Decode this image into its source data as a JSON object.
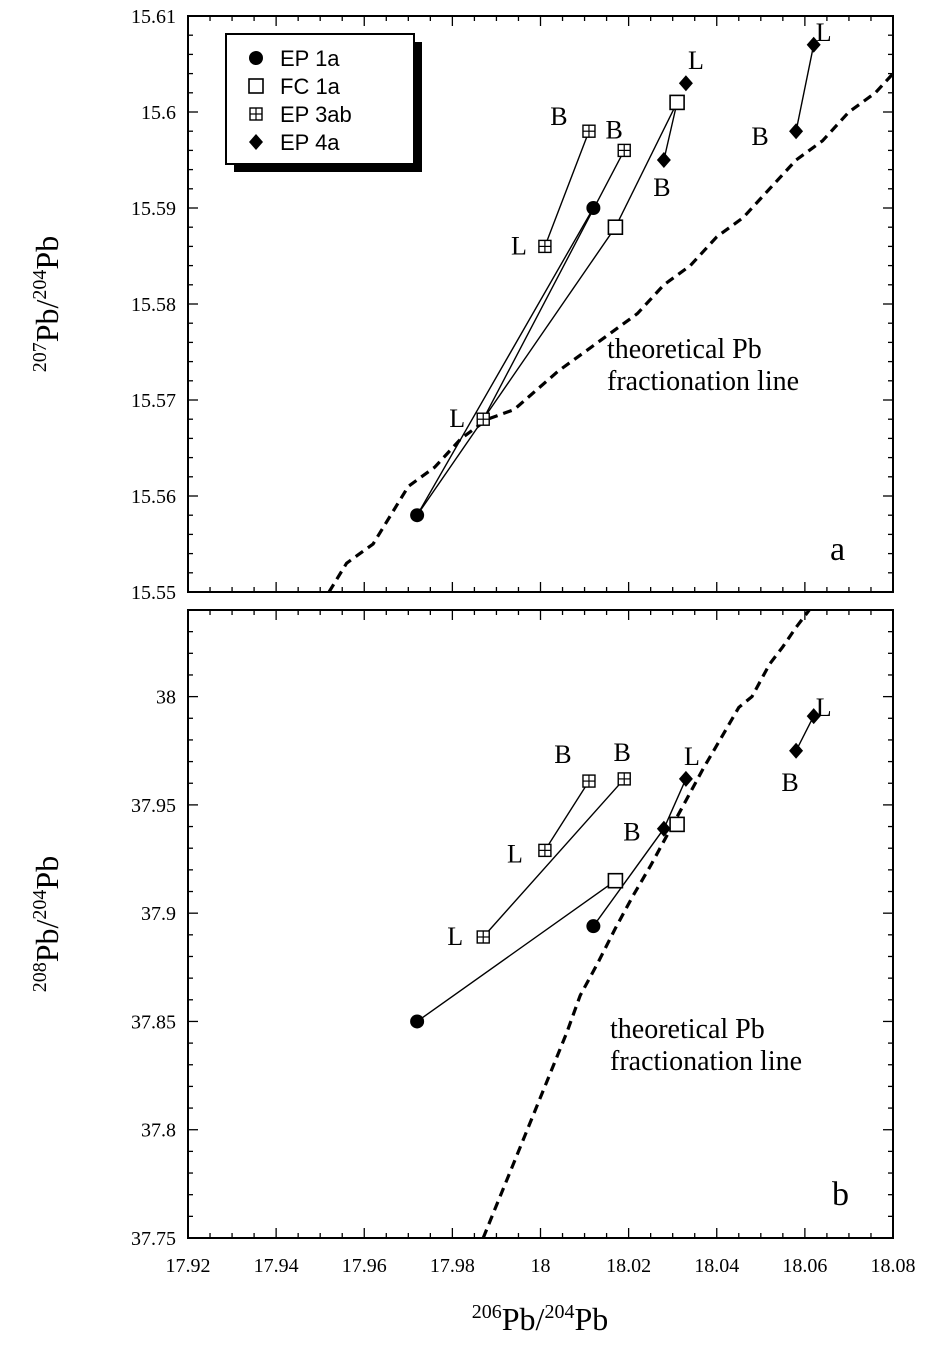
{
  "x_axis": {
    "label_parts": [
      {
        "text": "206",
        "sup": true
      },
      {
        "text": "Pb/",
        "sup": false
      },
      {
        "text": "204",
        "sup": true
      },
      {
        "text": "Pb",
        "sup": false
      }
    ],
    "ticks": [
      "17.92",
      "17.94",
      "17.96",
      "17.98",
      "18",
      "18.02",
      "18.04",
      "18.06",
      "18.08"
    ]
  },
  "legend": [
    {
      "marker": "circle-filled",
      "label": "EP 1a"
    },
    {
      "marker": "square-open",
      "label": "FC 1a"
    },
    {
      "marker": "square-cross",
      "label": "EP 3ab"
    },
    {
      "marker": "diamond-filled",
      "label": "EP 4a"
    }
  ],
  "chart_data": [
    {
      "type": "scatter",
      "panel": "a",
      "xlim": [
        17.92,
        18.08
      ],
      "ylim": [
        15.55,
        15.61
      ],
      "x_ticks": [
        "17.92",
        "17.94",
        "17.96",
        "17.98",
        "18",
        "18.02",
        "18.04",
        "18.06",
        "18.08"
      ],
      "y_ticks": [
        "15.55",
        "15.56",
        "15.57",
        "15.58",
        "15.59",
        "15.6",
        "15.61"
      ],
      "ylabel_parts": [
        {
          "text": "207",
          "sup": true
        },
        {
          "text": "Pb/",
          "sup": false
        },
        {
          "text": "204",
          "sup": true
        },
        {
          "text": "Pb",
          "sup": false
        }
      ],
      "annotation_lines": [
        "theoretical Pb",
        "fractionation line"
      ],
      "reference_line": {
        "style": "dashed",
        "x": [
          17.952,
          17.956,
          17.962,
          17.966,
          17.97,
          17.976,
          17.982,
          17.988,
          17.994,
          17.999,
          18.004,
          18.01,
          18.016,
          18.022,
          18.028,
          18.034,
          18.04,
          18.046,
          18.052,
          18.058,
          18.064,
          18.07,
          18.076,
          18.08
        ],
        "y": [
          15.55,
          15.553,
          15.555,
          15.558,
          15.561,
          15.563,
          15.566,
          15.568,
          15.569,
          15.571,
          15.573,
          15.575,
          15.577,
          15.579,
          15.582,
          15.584,
          15.587,
          15.589,
          15.592,
          15.595,
          15.597,
          15.6,
          15.602,
          15.604
        ]
      },
      "points": [
        {
          "series": "EP 1a",
          "x": 17.972,
          "y": 15.558,
          "label": ""
        },
        {
          "series": "EP 1a",
          "x": 18.012,
          "y": 15.59,
          "label": ""
        },
        {
          "series": "FC 1a",
          "x": 18.017,
          "y": 15.588,
          "label": ""
        },
        {
          "series": "FC 1a",
          "x": 18.031,
          "y": 15.601,
          "label": ""
        },
        {
          "series": "EP 3ab",
          "x": 17.987,
          "y": 15.568,
          "label": "L"
        },
        {
          "series": "EP 3ab",
          "x": 18.019,
          "y": 15.596,
          "label": "B"
        },
        {
          "series": "EP 3ab",
          "x": 18.001,
          "y": 15.586,
          "label": "L"
        },
        {
          "series": "EP 3ab",
          "x": 18.011,
          "y": 15.598,
          "label": "B"
        },
        {
          "series": "EP 4a",
          "x": 18.033,
          "y": 15.603,
          "label": "L"
        },
        {
          "series": "EP 4a",
          "x": 18.028,
          "y": 15.595,
          "label": "B"
        },
        {
          "series": "EP 4a",
          "x": 18.062,
          "y": 15.607,
          "label": "L"
        },
        {
          "series": "EP 4a",
          "x": 18.058,
          "y": 15.598,
          "label": "B"
        }
      ],
      "segments": [
        [
          0,
          1
        ],
        [
          0,
          2
        ],
        [
          4,
          5
        ],
        [
          2,
          3
        ],
        [
          6,
          7
        ],
        [
          3,
          9
        ],
        [
          10,
          11
        ]
      ],
      "panel_label": "a"
    },
    {
      "type": "scatter",
      "panel": "b",
      "xlim": [
        17.92,
        18.08
      ],
      "ylim": [
        37.75,
        38.04
      ],
      "x_ticks": [
        "17.92",
        "17.94",
        "17.96",
        "17.98",
        "18",
        "18.02",
        "18.04",
        "18.06",
        "18.08"
      ],
      "y_ticks": [
        "37.75",
        "37.8",
        "37.85",
        "37.9",
        "37.95",
        "38"
      ],
      "ylabel_parts": [
        {
          "text": "208",
          "sup": true
        },
        {
          "text": "Pb/",
          "sup": false
        },
        {
          "text": "204",
          "sup": true
        },
        {
          "text": "Pb",
          "sup": false
        }
      ],
      "annotation_lines": [
        "theoretical Pb",
        "fractionation line"
      ],
      "reference_line": {
        "style": "dashed",
        "x": [
          17.987,
          17.99,
          17.994,
          17.998,
          18.002,
          18.006,
          18.009,
          18.013,
          18.017,
          18.021,
          18.025,
          18.029,
          18.033,
          18.037,
          18.041,
          18.045,
          18.048,
          18.052,
          18.055,
          18.058,
          18.061
        ],
        "y": [
          37.75,
          37.765,
          37.785,
          37.805,
          37.825,
          37.845,
          37.862,
          37.877,
          37.893,
          37.908,
          37.922,
          37.937,
          37.952,
          37.967,
          37.981,
          37.995,
          38.0,
          38.015,
          38.023,
          38.032,
          38.04
        ]
      },
      "points": [
        {
          "series": "EP 1a",
          "x": 17.972,
          "y": 37.85,
          "label": ""
        },
        {
          "series": "EP 1a",
          "x": 18.012,
          "y": 37.894,
          "label": ""
        },
        {
          "series": "FC 1a",
          "x": 18.017,
          "y": 37.915,
          "label": ""
        },
        {
          "series": "FC 1a",
          "x": 18.031,
          "y": 37.941,
          "label": ""
        },
        {
          "series": "EP 3ab",
          "x": 17.987,
          "y": 37.889,
          "label": "L"
        },
        {
          "series": "EP 3ab",
          "x": 18.019,
          "y": 37.962,
          "label": "B"
        },
        {
          "series": "EP 3ab",
          "x": 18.001,
          "y": 37.929,
          "label": "L"
        },
        {
          "series": "EP 3ab",
          "x": 18.011,
          "y": 37.961,
          "label": "B"
        },
        {
          "series": "EP 4a",
          "x": 18.033,
          "y": 37.962,
          "label": "L"
        },
        {
          "series": "EP 4a",
          "x": 18.028,
          "y": 37.939,
          "label": "B"
        },
        {
          "series": "EP 4a",
          "x": 18.062,
          "y": 37.991,
          "label": "L"
        },
        {
          "series": "EP 4a",
          "x": 18.058,
          "y": 37.975,
          "label": "B"
        }
      ],
      "segments": [
        [
          0,
          2
        ],
        [
          1,
          9
        ],
        [
          9,
          8
        ],
        [
          4,
          5
        ],
        [
          6,
          7
        ],
        [
          10,
          11
        ]
      ],
      "panel_label": "b"
    }
  ]
}
